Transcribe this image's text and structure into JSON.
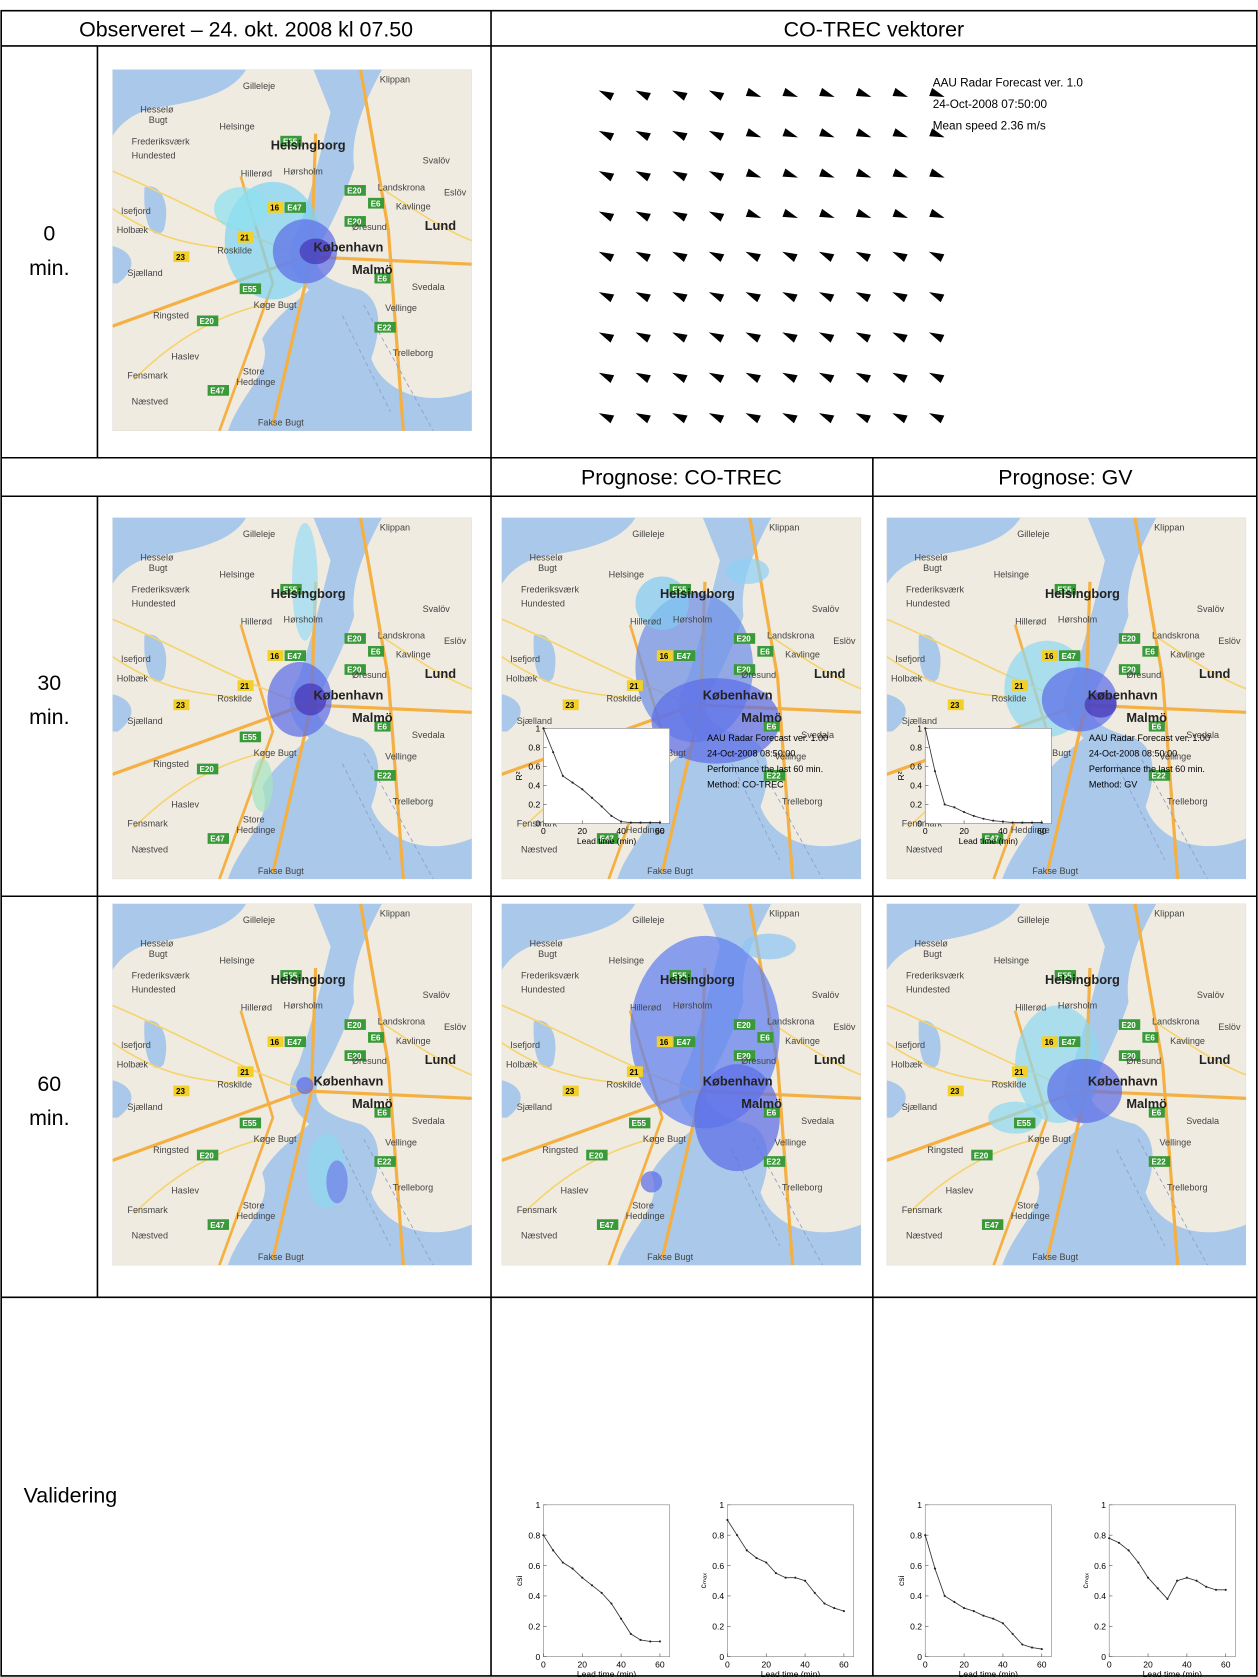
{
  "table": {
    "header": [
      "Observeret – 24. okt. 2008 kl 07.50",
      "CO-TREC vektorer"
    ],
    "subheader": [
      "Prognose: CO-TREC",
      "Prognose: GV"
    ],
    "rows": [
      {
        "label": [
          "0",
          "min."
        ]
      },
      {
        "label": [
          "30",
          "min."
        ]
      },
      {
        "label": [
          "60",
          "min."
        ]
      }
    ]
  },
  "vectors": {
    "annotation": [
      "AAU Radar Forecast ver. 1.0",
      "24-Oct-2008 07:50:00",
      "Mean speed 2.36 m/s"
    ]
  },
  "map": {
    "places": [
      "Gilleleje",
      "Klippan",
      "Hesselø",
      "Bugt",
      "Helsingborg",
      "Helsinge",
      "Frederiksværk",
      "Hundested",
      "Hillerød",
      "Hørsholm",
      "Svalöv",
      "Isefjord",
      "Landskrona",
      "Eslöv",
      "Kavlinge",
      "Holbæk",
      "Øresund",
      "Lund",
      "Roskilde",
      "København",
      "Malmö",
      "Sjælland",
      "Svedala",
      "Køge Bugt",
      "Ringsted",
      "Vellinge",
      "Trelleborg",
      "Haslev",
      "Fensmark",
      "Store",
      "Heddinge",
      "Næstved",
      "Fakse Bugt"
    ],
    "road_signs": [
      "E55",
      "E20",
      "E6",
      "E47",
      "16",
      "21",
      "23",
      "E22"
    ]
  },
  "validation": {
    "label": "Validering",
    "columns": [
      {
        "annotation": [
          "AAU Radar Forecast ver. 1.00",
          "24-Oct-2008 08:50:00",
          "Performance the last 60 min.",
          "Method: CO-TREC"
        ],
        "charts": [
          {
            "type": "line",
            "ylabel": "R²",
            "xlabel": "Lead time (min)",
            "x": [
              0,
              5,
              10,
              15,
              20,
              25,
              30,
              35,
              40,
              45,
              50,
              55,
              60
            ],
            "values": [
              1,
              0.75,
              0.5,
              0.43,
              0.36,
              0.27,
              0.18,
              0.08,
              0.02,
              0.01,
              0.01,
              0.01,
              0.01
            ],
            "xlim": [
              0,
              65
            ],
            "ylim": [
              0,
              1
            ],
            "xticks": [
              0,
              20,
              40,
              60
            ],
            "yticks": [
              0,
              0.2,
              0.4,
              0.6,
              0.8,
              1
            ]
          },
          {
            "type": "line",
            "ylabel": "csi",
            "xlabel": "Lead time (min)",
            "x": [
              0,
              5,
              10,
              15,
              20,
              25,
              30,
              35,
              40,
              45,
              50,
              55,
              60
            ],
            "values": [
              0.8,
              0.7,
              0.62,
              0.58,
              0.52,
              0.47,
              0.42,
              0.35,
              0.25,
              0.15,
              0.11,
              0.1,
              0.1
            ],
            "xlim": [
              0,
              65
            ],
            "ylim": [
              0,
              1
            ],
            "xticks": [
              0,
              20,
              40,
              60
            ],
            "yticks": [
              0,
              0.2,
              0.4,
              0.6,
              0.8,
              1
            ]
          },
          {
            "type": "line",
            "ylabel": "cₘₐₓ",
            "xlabel": "Lead time (min)",
            "x": [
              0,
              5,
              10,
              15,
              20,
              25,
              30,
              35,
              40,
              45,
              50,
              55,
              60
            ],
            "values": [
              0.9,
              0.8,
              0.7,
              0.65,
              0.62,
              0.55,
              0.52,
              0.52,
              0.5,
              0.42,
              0.35,
              0.32,
              0.3
            ],
            "xlim": [
              0,
              65
            ],
            "ylim": [
              0,
              1
            ],
            "xticks": [
              0,
              20,
              40,
              60
            ],
            "yticks": [
              0,
              0.2,
              0.4,
              0.6,
              0.8,
              1
            ]
          }
        ]
      },
      {
        "annotation": [
          "AAU Radar Forecast ver. 1.00",
          "24-Oct-2008 08:50:00",
          "Performance the last 60 min.",
          "Method: GV"
        ],
        "charts": [
          {
            "type": "line",
            "ylabel": "R²",
            "xlabel": "Lead time (min)",
            "x": [
              0,
              5,
              10,
              15,
              20,
              25,
              30,
              35,
              40,
              45,
              50,
              55,
              60
            ],
            "values": [
              1,
              0.55,
              0.2,
              0.17,
              0.12,
              0.08,
              0.05,
              0.03,
              0.02,
              0.01,
              0.01,
              0.01,
              0.01
            ],
            "xlim": [
              0,
              65
            ],
            "ylim": [
              0,
              1
            ],
            "xticks": [
              0,
              20,
              40,
              60
            ],
            "yticks": [
              0,
              0.2,
              0.4,
              0.6,
              0.8,
              1
            ]
          },
          {
            "type": "line",
            "ylabel": "csi",
            "xlabel": "Lead time (min)",
            "x": [
              0,
              5,
              10,
              15,
              20,
              25,
              30,
              35,
              40,
              45,
              50,
              55,
              60
            ],
            "values": [
              0.8,
              0.58,
              0.4,
              0.36,
              0.32,
              0.3,
              0.27,
              0.25,
              0.22,
              0.15,
              0.08,
              0.06,
              0.05
            ],
            "xlim": [
              0,
              65
            ],
            "ylim": [
              0,
              1
            ],
            "xticks": [
              0,
              20,
              40,
              60
            ],
            "yticks": [
              0,
              0.2,
              0.4,
              0.6,
              0.8,
              1
            ]
          },
          {
            "type": "line",
            "ylabel": "cₘₐₓ",
            "xlabel": "Lead time (min)",
            "x": [
              0,
              5,
              10,
              15,
              20,
              25,
              30,
              35,
              40,
              45,
              50,
              55,
              60
            ],
            "values": [
              0.78,
              0.75,
              0.7,
              0.62,
              0.52,
              0.45,
              0.38,
              0.5,
              0.52,
              0.5,
              0.46,
              0.44,
              0.44
            ],
            "xlim": [
              0,
              65
            ],
            "ylim": [
              0,
              1
            ],
            "xticks": [
              0,
              20,
              40,
              60
            ],
            "yticks": [
              0,
              0.2,
              0.4,
              0.6,
              0.8,
              1
            ]
          }
        ]
      }
    ]
  }
}
